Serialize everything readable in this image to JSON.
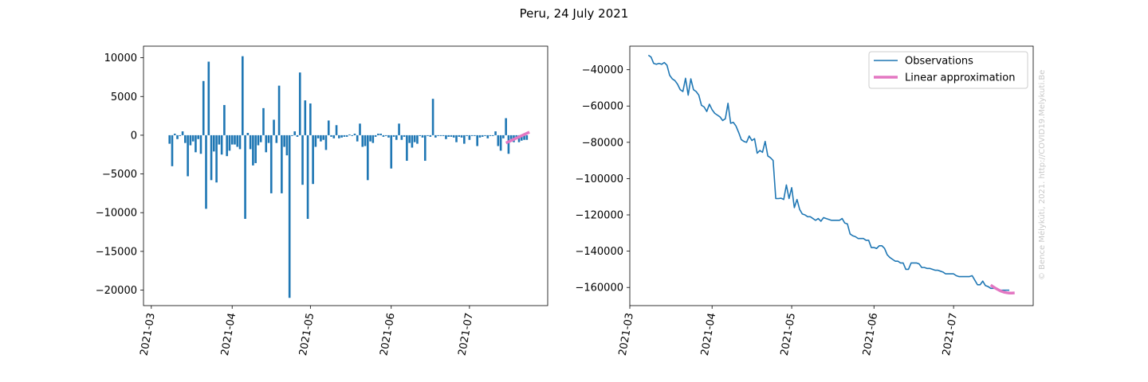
{
  "figure": {
    "title": "Peru, 24 July 2021",
    "watermark": "© Bence Mélykúti, 2021. http://COVID19.Melykuti.Be"
  },
  "chart_data": [
    {
      "type": "bar",
      "x_start": "2021-03-08",
      "ylim": [
        -22000,
        11500
      ],
      "yticks": [
        -20000,
        -15000,
        -10000,
        -5000,
        0,
        5000,
        10000
      ],
      "ytick_labels": [
        "−20000",
        "−15000",
        "−10000",
        "−5000",
        "0",
        "5000",
        "10000"
      ],
      "xticks": [
        "2021-03",
        "2021-04",
        "2021-05",
        "2021-06",
        "2021-07"
      ],
      "xlim": [
        "2021-02-26",
        "2021-07-31"
      ],
      "values": [
        -1100,
        -4000,
        200,
        -500,
        -100,
        500,
        -1000,
        -5300,
        -1300,
        -800,
        -2200,
        -500,
        -2400,
        7000,
        -9500,
        9500,
        -5800,
        -2100,
        -6100,
        -1200,
        -2500,
        3900,
        -2700,
        -2000,
        -1200,
        -1200,
        -1500,
        -1800,
        10200,
        -10800,
        300,
        -1800,
        -3900,
        -3600,
        -1300,
        -900,
        3500,
        -2200,
        -1000,
        -7500,
        2000,
        -1000,
        6400,
        -7500,
        -1500,
        -2600,
        -21000,
        -100,
        500,
        -200,
        8100,
        -6400,
        4500,
        -10800,
        4100,
        -6300,
        -1500,
        -400,
        -800,
        -600,
        -1900,
        1900,
        -200,
        -400,
        1300,
        -400,
        -300,
        -200,
        -200,
        100,
        -100,
        200,
        -800,
        1500,
        -1500,
        -1400,
        -5800,
        -800,
        -1000,
        -200,
        200,
        200,
        -200,
        -100,
        -300,
        -4300,
        -200,
        -600,
        1500,
        -600,
        -200,
        -3300,
        -1000,
        -1600,
        -900,
        -1100,
        -100,
        -300,
        -3300,
        -100,
        -200,
        4700,
        -300,
        -100,
        -100,
        -100,
        -500,
        -200,
        -200,
        -300,
        -900,
        -200,
        -300,
        -1100,
        -100,
        -600,
        -100,
        -100,
        -1400,
        -300,
        -200,
        -100,
        -400,
        -100,
        -100,
        500,
        -1400,
        -2000,
        -400,
        2200,
        -2400,
        -500,
        -900,
        -500,
        -900,
        -700,
        -600,
        -600
      ],
      "series": [
        {
          "name": "Observations",
          "color": "#1f77b4"
        },
        {
          "name": "Linear approximation",
          "color": "#e377c2",
          "x": [
            "2021-07-15",
            "2021-07-24"
          ],
          "values": [
            -1000,
            400
          ]
        }
      ]
    },
    {
      "type": "line",
      "ylim": [
        -170000,
        -27000
      ],
      "yticks": [
        -160000,
        -140000,
        -120000,
        -100000,
        -80000,
        -60000,
        -40000
      ],
      "ytick_labels": [
        "−160000",
        "−140000",
        "−120000",
        "−100000",
        "−80000",
        "−60000",
        "−40000"
      ],
      "xticks": [
        "2021-03",
        "2021-04",
        "2021-05",
        "2021-06",
        "2021-07"
      ],
      "xlim": [
        "2021-03-01",
        "2021-07-31"
      ],
      "legend": "top-right",
      "series": [
        {
          "name": "Observations",
          "color": "#1f77b4",
          "x_start": "2021-03-08",
          "values": [
            -32000,
            -33000,
            -36500,
            -37000,
            -36500,
            -37000,
            -36000,
            -37500,
            -43000,
            -45000,
            -46000,
            -48000,
            -51000,
            -52000,
            -44700,
            -54000,
            -45000,
            -51000,
            -52000,
            -54000,
            -59600,
            -60500,
            -63000,
            -59000,
            -62000,
            -64000,
            -65000,
            -66000,
            -68000,
            -67000,
            -58500,
            -69500,
            -69000,
            -71000,
            -74500,
            -78500,
            -79500,
            -80000,
            -76500,
            -79000,
            -78000,
            -86000,
            -84500,
            -85500,
            -79500,
            -87500,
            -88500,
            -90000,
            -111000,
            -111000,
            -110800,
            -111500,
            -103500,
            -111000,
            -105000,
            -116000,
            -111500,
            -117000,
            -119500,
            -120000,
            -121000,
            -121000,
            -122000,
            -123000,
            -122000,
            -123500,
            -121500,
            -122000,
            -122500,
            -123000,
            -123000,
            -123000,
            -123000,
            -122000,
            -124500,
            -125000,
            -130500,
            -131500,
            -132000,
            -133000,
            -133000,
            -133000,
            -134000,
            -134000,
            -138000,
            -138000,
            -138500,
            -137000,
            -137000,
            -138500,
            -142000,
            -143500,
            -144500,
            -145500,
            -145500,
            -146500,
            -146500,
            -150000,
            -150000,
            -146500,
            -146500,
            -146500,
            -147000,
            -149000,
            -149000,
            -149500,
            -149500,
            -150000,
            -150500,
            -150500,
            -151000,
            -151500,
            -152500,
            -152500,
            -152500,
            -152500,
            -153500,
            -154000,
            -154000,
            -154000,
            -154000,
            -154000,
            -153500,
            -156000,
            -158500,
            -158500,
            -156500,
            -159000,
            -159500,
            -160500,
            -160500,
            -160500,
            -161500,
            -161500,
            -161500,
            -161500,
            -161500
          ]
        },
        {
          "name": "Linear approximation",
          "color": "#e377c2",
          "x": [
            "2021-07-15",
            "2021-07-16",
            "2021-07-17",
            "2021-07-18",
            "2021-07-19",
            "2021-07-20",
            "2021-07-21",
            "2021-07-22",
            "2021-07-23",
            "2021-07-24"
          ],
          "values": [
            -158700,
            -159700,
            -160600,
            -161400,
            -162100,
            -162600,
            -162900,
            -163100,
            -163100,
            -163000
          ]
        }
      ]
    }
  ]
}
